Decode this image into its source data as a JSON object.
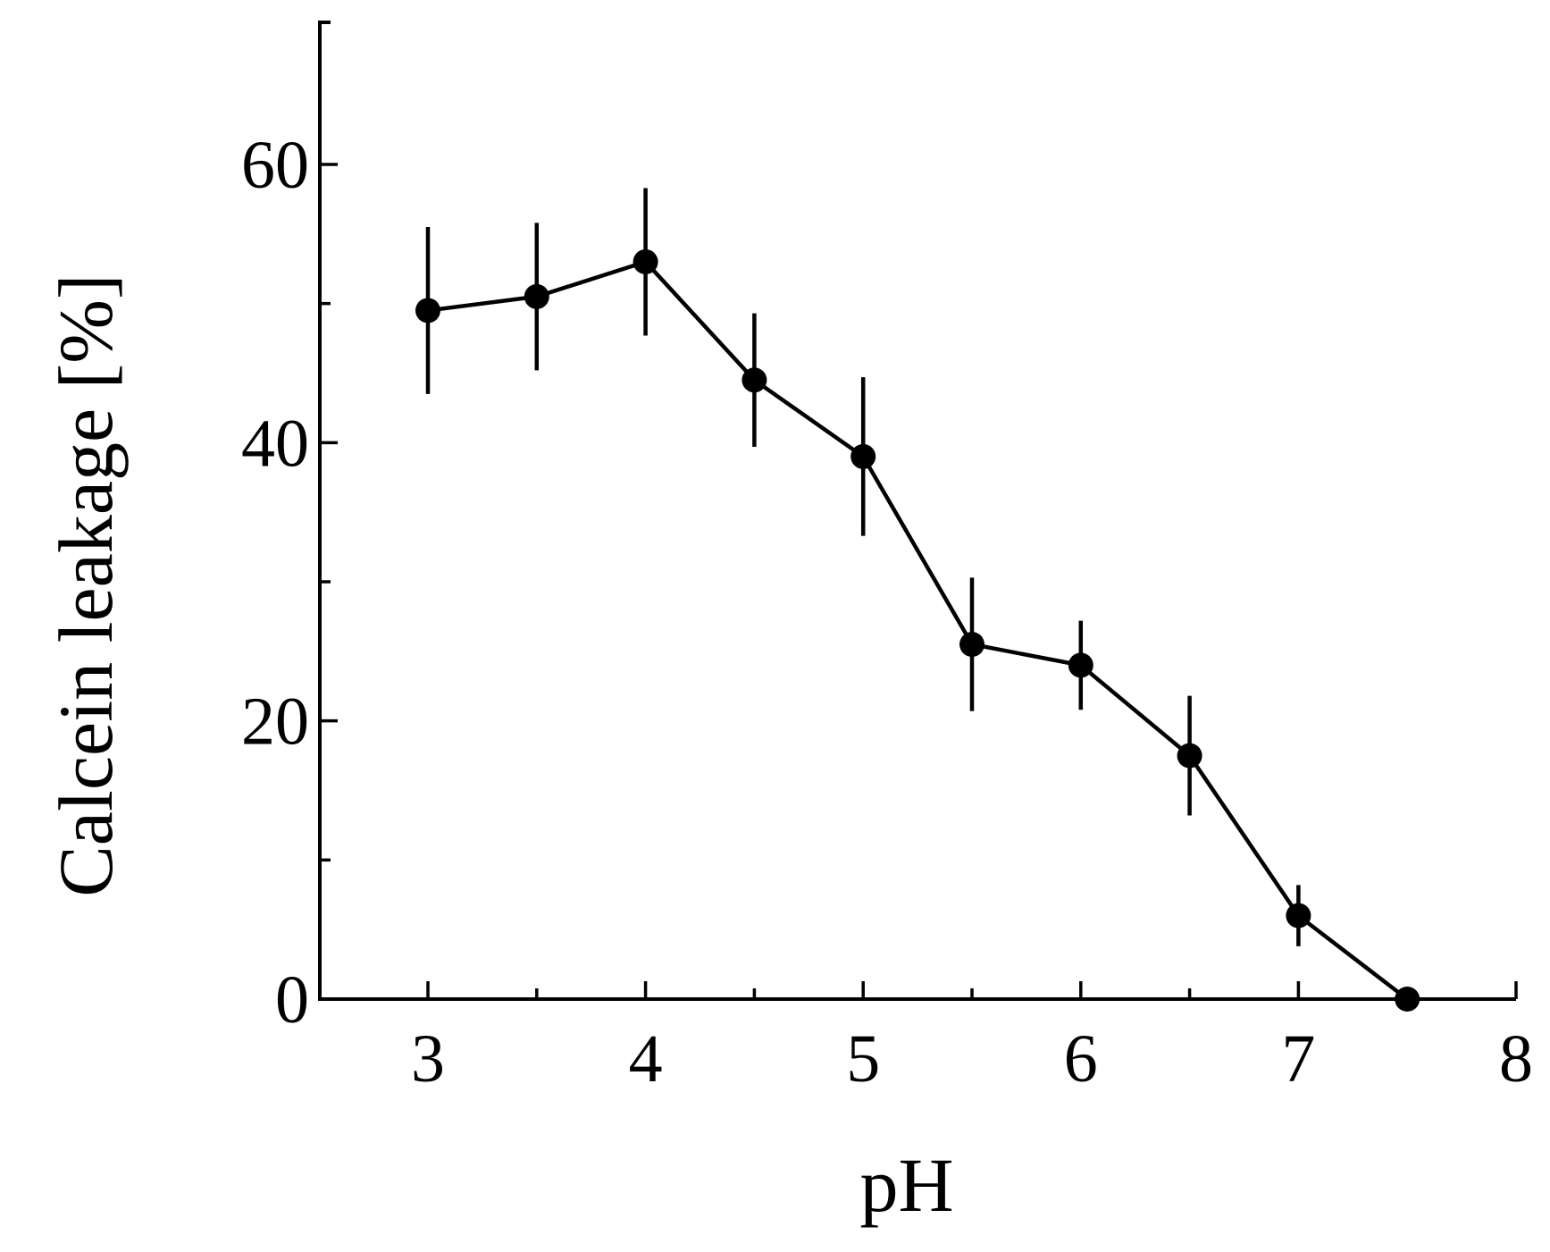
{
  "chart_data": {
    "type": "line",
    "title": "",
    "xlabel": "pH",
    "ylabel": "Calcein leakage [%]",
    "xlim": [
      2.5,
      8
    ],
    "ylim": [
      0,
      70
    ],
    "x_ticks_major": [
      3,
      4,
      5,
      6,
      7,
      8
    ],
    "x_tick_labels": [
      "3",
      "4",
      "5",
      "6",
      "7",
      "8"
    ],
    "x_ticks_minor": [
      3.5,
      4.5,
      5.5,
      6.5,
      7.5
    ],
    "y_ticks_major": [
      0,
      20,
      40,
      60
    ],
    "y_tick_labels": [
      "0",
      "20",
      "40",
      "60"
    ],
    "y_ticks_minor": [
      10,
      30,
      50
    ],
    "grid": false,
    "legend": "none",
    "series": [
      {
        "color": "#000000",
        "marker": "filled-circle",
        "x": [
          3,
          3.5,
          4,
          4.5,
          5,
          5.5,
          6,
          6.5,
          7,
          7.5
        ],
        "y": [
          49.5,
          50.5,
          53,
          44.5,
          39,
          25.5,
          24,
          17.5,
          6,
          0
        ],
        "error": [
          6,
          5.3,
          5.3,
          4.8,
          5.7,
          4.8,
          3.2,
          4.3,
          2.2,
          0
        ]
      }
    ]
  }
}
